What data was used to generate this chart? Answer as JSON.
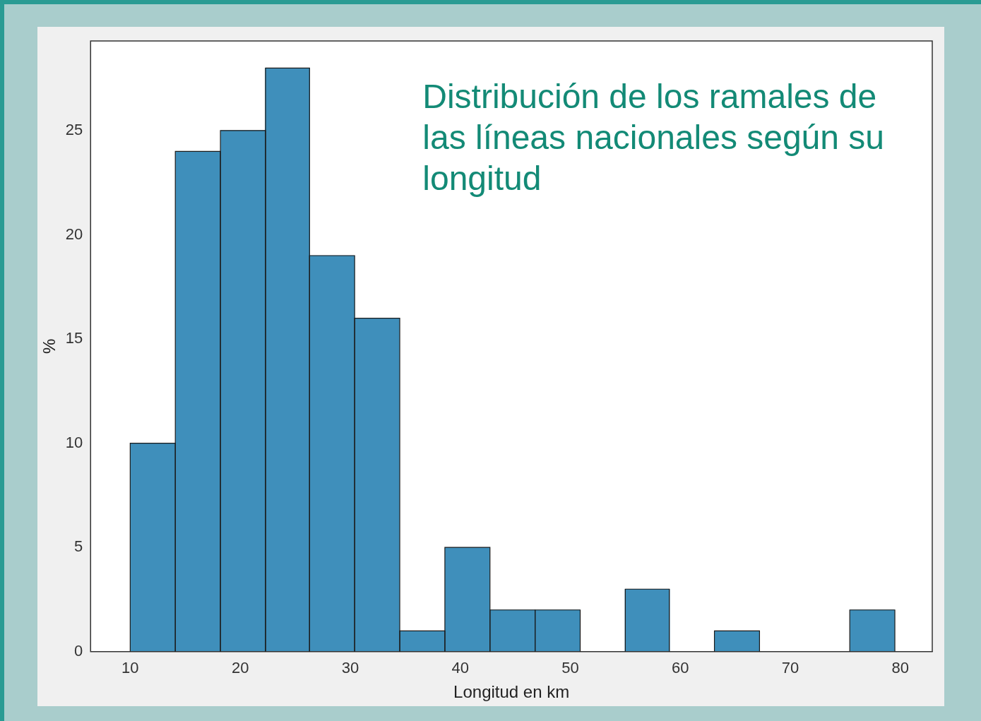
{
  "chart_data": {
    "type": "histogram",
    "title": "Distribución de los ramales de las líneas nacionales según su longitud",
    "xlabel": "Longitud en km",
    "ylabel": "%",
    "bins": [
      10,
      14.1,
      18.2,
      22.3,
      26.3,
      30.4,
      34.5,
      38.6,
      42.7,
      46.8,
      50.9,
      55.0,
      59.0,
      63.1,
      67.2,
      71.3,
      75.4,
      79.5
    ],
    "values": [
      10,
      24,
      25,
      28,
      19,
      16,
      1,
      5,
      2,
      2,
      0,
      3,
      0,
      1,
      0,
      0,
      2
    ],
    "color": "#3f8fbb",
    "xlim": [
      6.4,
      82.9
    ],
    "xticks": [
      10,
      20,
      30,
      40,
      50,
      60,
      70,
      80
    ],
    "ylim": [
      0,
      29.3
    ],
    "yticks": [
      0,
      5,
      10,
      15,
      20,
      25
    ],
    "grid": false,
    "legend": false
  }
}
